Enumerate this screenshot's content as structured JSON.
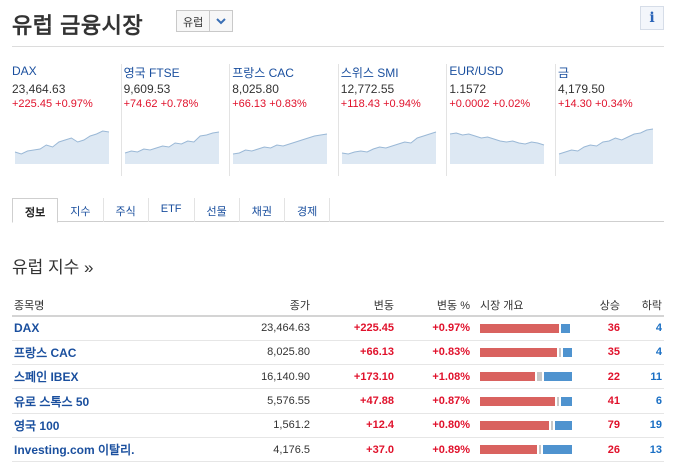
{
  "header": {
    "title": "유럽 금융시장",
    "region_select": "유럽"
  },
  "tiles": [
    {
      "name": "DAX",
      "price": "23,464.63",
      "change": "+225.45",
      "change_pct": "+0.97%",
      "spark": [
        32,
        34,
        31,
        30,
        29,
        25,
        27,
        22,
        20,
        18,
        22,
        20,
        16,
        14,
        11,
        12
      ]
    },
    {
      "name": "영국 FTSE",
      "price": "9,609.53",
      "change": "+74.62",
      "change_pct": "+0.78%",
      "spark": [
        33,
        31,
        32,
        29,
        30,
        28,
        26,
        27,
        23,
        24,
        21,
        22,
        16,
        15,
        13,
        12
      ]
    },
    {
      "name": "프랑스 CAC",
      "price": "8,025.80",
      "change": "+66.13",
      "change_pct": "+0.83%",
      "spark": [
        34,
        33,
        30,
        31,
        29,
        27,
        28,
        25,
        26,
        24,
        22,
        20,
        18,
        16,
        15,
        14
      ]
    },
    {
      "name": "스위스 SMI",
      "price": "12,772.55",
      "change": "+118.43",
      "change_pct": "+0.94%",
      "spark": [
        33,
        34,
        32,
        31,
        32,
        29,
        27,
        28,
        26,
        24,
        22,
        23,
        18,
        16,
        14,
        12
      ]
    },
    {
      "name": "EUR/USD",
      "price": "1.1572",
      "change": "+0.0002",
      "change_pct": "+0.02%",
      "spark": [
        14,
        13,
        15,
        14,
        16,
        18,
        17,
        19,
        21,
        22,
        21,
        23,
        24,
        22,
        23,
        25
      ]
    },
    {
      "name": "금",
      "price": "4,179.50",
      "change": "+14.30",
      "change_pct": "+0.34%",
      "spark": [
        34,
        32,
        30,
        31,
        27,
        25,
        26,
        22,
        21,
        18,
        20,
        17,
        14,
        13,
        10,
        9
      ]
    }
  ],
  "tabs": [
    "정보",
    "지수",
    "주식",
    "ETF",
    "선물",
    "채권",
    "경제"
  ],
  "section_title": "유럽 지수 »",
  "table": {
    "headers": {
      "name": "종목명",
      "price": "종가",
      "change": "변동",
      "change_pct": "변동 %",
      "breadth": "시장 개요",
      "adv": "상승",
      "dec": "하락"
    },
    "rows": [
      {
        "name": "DAX",
        "price": "23,464.63",
        "change": "+225.45",
        "change_pct": "+0.97%",
        "adv": "36",
        "dec": "4",
        "breadth": {
          "up": 36,
          "flat": 0,
          "down": 4
        }
      },
      {
        "name": "프랑스 CAC",
        "price": "8,025.80",
        "change": "+66.13",
        "change_pct": "+0.83%",
        "adv": "35",
        "dec": "4",
        "breadth": {
          "up": 35,
          "flat": 1,
          "down": 4
        }
      },
      {
        "name": "스페인 IBEX",
        "price": "16,140.90",
        "change": "+173.10",
        "change_pct": "+1.08%",
        "adv": "22",
        "dec": "11",
        "breadth": {
          "up": 22,
          "flat": 2,
          "down": 11
        }
      },
      {
        "name": "유로 스톡스 50",
        "price": "5,576.55",
        "change": "+47.88",
        "change_pct": "+0.87%",
        "adv": "41",
        "dec": "6",
        "breadth": {
          "up": 41,
          "flat": 1,
          "down": 6
        }
      },
      {
        "name": "영국 100",
        "price": "1,561.2",
        "change": "+12.4",
        "change_pct": "+0.80%",
        "adv": "79",
        "dec": "19",
        "breadth": {
          "up": 79,
          "flat": 2,
          "down": 19
        }
      },
      {
        "name": "Investing.com 이탈리.",
        "price": "4,176.5",
        "change": "+37.0",
        "change_pct": "+0.89%",
        "adv": "26",
        "dec": "13",
        "breadth": {
          "up": 26,
          "flat": 1,
          "down": 13
        }
      }
    ]
  },
  "colors": {
    "up": "#e0112b",
    "down": "#1a6fc4",
    "link": "#1a4f9e",
    "bar_up": "#d9625f",
    "bar_flat": "#c8c8c8",
    "bar_down": "#4f93cf",
    "spark_fill": "#dde8f3",
    "spark_line": "#9ab8d6"
  },
  "icons": {
    "info": "info-icon",
    "dropdown": "chevron-down-icon"
  }
}
